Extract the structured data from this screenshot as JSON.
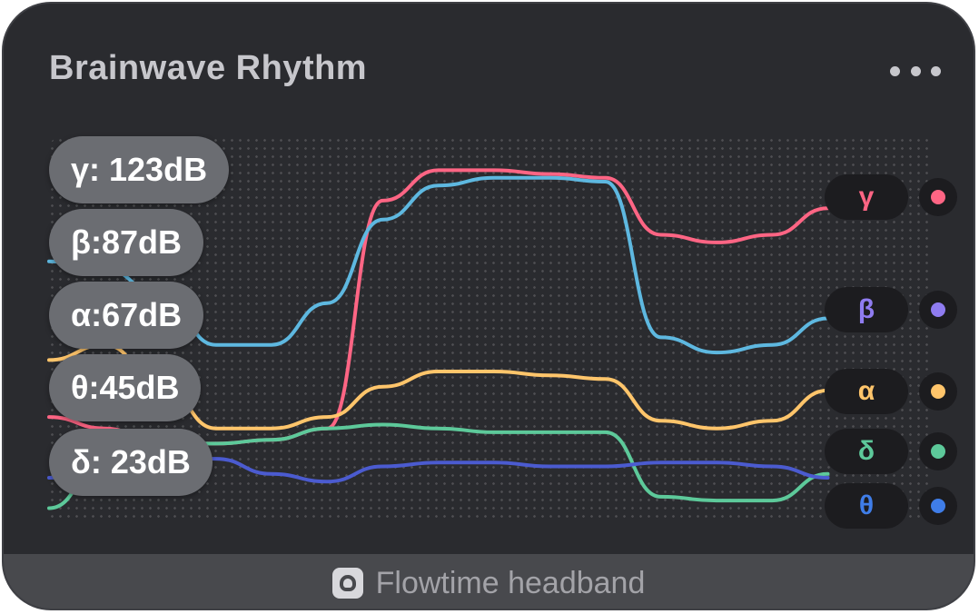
{
  "widget": {
    "title": "Brainwave Rhythm",
    "footer_label": "Flowtime headband",
    "menu_icon": "more-horizontal-icon",
    "footer_icon": "headband-icon"
  },
  "readouts": [
    {
      "key": "gamma",
      "text": "γ: 123dB"
    },
    {
      "key": "beta",
      "text": "β:87dB"
    },
    {
      "key": "alpha",
      "text": "α:67dB"
    },
    {
      "key": "theta",
      "text": "θ:45dB"
    },
    {
      "key": "delta",
      "text": "δ: 23dB"
    }
  ],
  "chart_data": {
    "type": "line",
    "x": [
      0,
      1,
      2,
      3,
      4,
      5,
      6,
      7,
      8,
      9,
      10,
      11,
      12,
      13,
      14,
      15,
      16
    ],
    "grid": "dotted",
    "legend": "right",
    "ylim": [
      0,
      100
    ],
    "series": [
      {
        "name": "γ",
        "color": "#ff6584",
        "values": [
          27,
          24,
          20,
          20,
          21,
          24,
          84,
          92,
          92,
          91,
          90,
          75,
          73,
          75,
          82,
          null,
          null
        ]
      },
      {
        "name": "β",
        "color": "#5eb8e0",
        "values": [
          68,
          66,
          59,
          46,
          46,
          57,
          79,
          88,
          90,
          90,
          89,
          48,
          44,
          46,
          53,
          null,
          null
        ]
      },
      {
        "name": "α",
        "color": "#ffc56b",
        "values": [
          42,
          46,
          36,
          24,
          24,
          27,
          35,
          39,
          39,
          38,
          37,
          26,
          24,
          26,
          34,
          null,
          null
        ]
      },
      {
        "name": "δ",
        "color": "#5dc99a",
        "values": [
          3,
          15,
          20,
          20,
          21,
          24,
          25,
          24,
          23,
          23,
          23,
          6,
          5,
          5,
          12,
          null,
          null
        ]
      },
      {
        "name": "θ",
        "color": "#4b5bd0",
        "values": [
          11,
          14,
          18,
          16,
          12,
          10,
          14,
          15,
          15,
          14,
          14,
          15,
          15,
          14,
          11,
          null,
          null
        ]
      }
    ]
  },
  "legend": [
    {
      "symbol": "γ",
      "color": "#ff6584",
      "dot": "#ff6584"
    },
    {
      "symbol": "β",
      "color": "#8f7cf0",
      "dot": "#8f7cf0"
    },
    {
      "symbol": "α",
      "color": "#ffc56b",
      "dot": "#ffc56b"
    },
    {
      "symbol": "δ",
      "color": "#5dc99a",
      "dot": "#5dc99a"
    },
    {
      "symbol": "θ",
      "color": "#3f7de8",
      "dot": "#3f7de8"
    }
  ]
}
